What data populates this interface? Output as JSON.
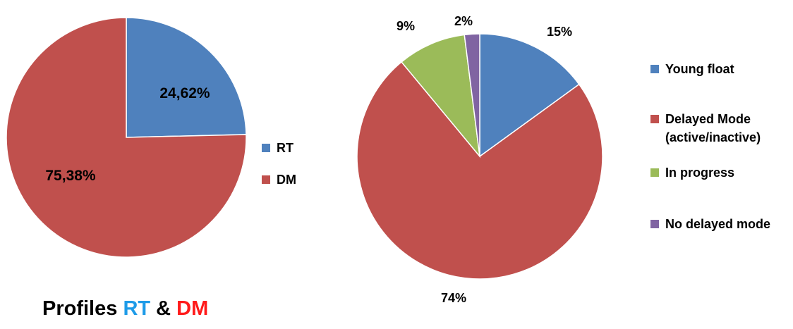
{
  "chart_data": [
    {
      "type": "pie",
      "legend_position": "right",
      "slices": [
        {
          "label": "RT",
          "value": 24.62,
          "data_label": "24,62%",
          "color": "#4f81bd"
        },
        {
          "label": "DM",
          "value": 75.38,
          "data_label": "75,38%",
          "color": "#c0504d"
        }
      ]
    },
    {
      "type": "pie",
      "legend_position": "right",
      "slices": [
        {
          "label": "Young float",
          "value": 15,
          "data_label": "15%",
          "color": "#4f81bd"
        },
        {
          "label": "Delayed Mode (active/inactive)",
          "value": 74,
          "data_label": "74%",
          "color": "#c0504d"
        },
        {
          "label": "In progress",
          "value": 9,
          "data_label": "9%",
          "color": "#9bbb59"
        },
        {
          "label": "No delayed mode",
          "value": 2,
          "data_label": "2%",
          "color": "#8064a2"
        }
      ]
    }
  ],
  "caption": {
    "prefix": "Profiles ",
    "part_a": "RT",
    "joiner": " & ",
    "part_b": "DM",
    "color_a": "#1e9be8",
    "color_b": "#ff1a1a"
  }
}
